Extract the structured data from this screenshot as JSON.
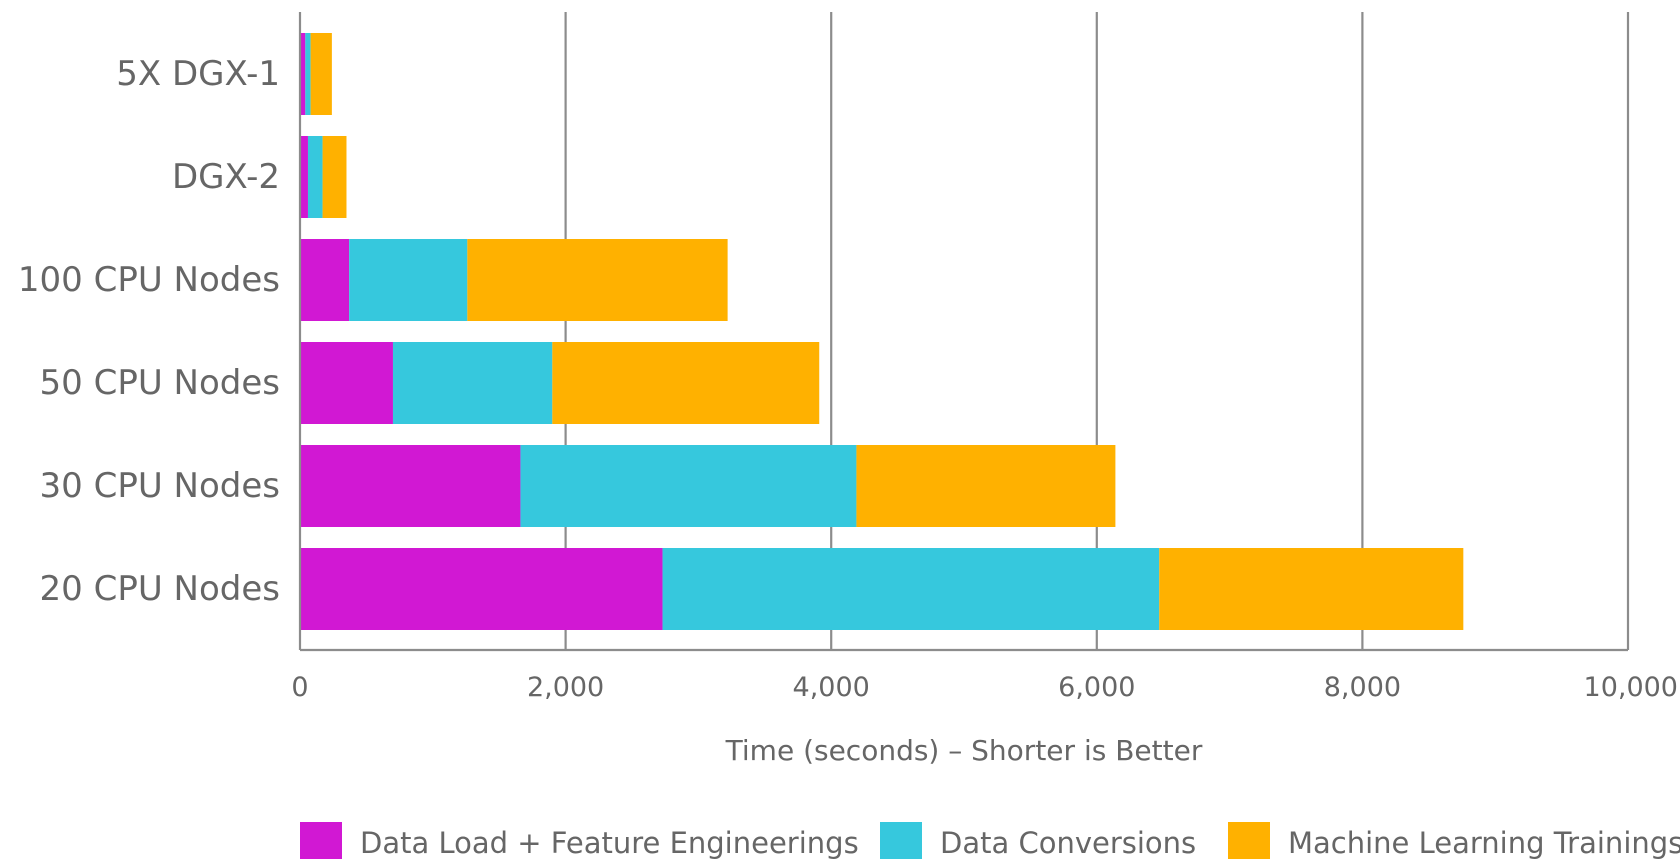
{
  "chart_data": {
    "type": "bar",
    "orientation": "horizontal",
    "stacked": true,
    "categories": [
      "5X DGX-1",
      "DGX-2",
      "100 CPU Nodes",
      "50 CPU Nodes",
      "30 CPU Nodes",
      "20 CPU Nodes"
    ],
    "series": [
      {
        "name": "Data Load + Feature Engineerings",
        "color": "#d118d3",
        "values": [
          40,
          60,
          370,
          700,
          1660,
          2730
        ]
      },
      {
        "name": "Data Conversions",
        "color": "#36c8dd",
        "values": [
          40,
          110,
          890,
          1200,
          2530,
          3740
        ]
      },
      {
        "name": "Machine Learning Trainings",
        "color": "#ffb100",
        "values": [
          160,
          180,
          1960,
          2010,
          1950,
          2290
        ]
      }
    ],
    "xlabel": "Time (seconds) – Shorter is Better",
    "xlim": [
      0,
      10000
    ],
    "xticks": [
      0,
      2000,
      4000,
      6000,
      8000,
      10000
    ],
    "xtick_labels": [
      "0",
      "2,000",
      "4,000",
      "6,000",
      "8,000",
      "10,000"
    ],
    "grid": "vertical",
    "legend_position": "bottom",
    "title": ""
  }
}
